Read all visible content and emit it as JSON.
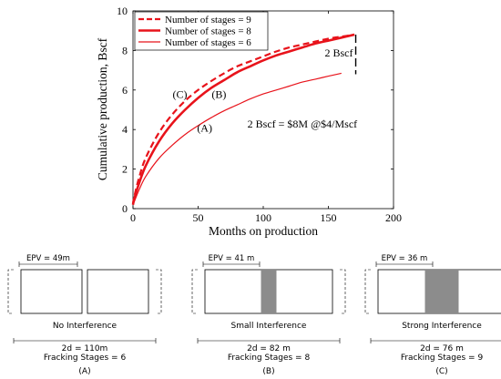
{
  "chart_data": {
    "type": "line",
    "xlabel": "Months on production",
    "ylabel": "Cumulative production, Bscf",
    "xlim": [
      0,
      200
    ],
    "ylim": [
      0,
      10
    ],
    "x_ticks": [
      "0",
      "50",
      "100",
      "150",
      "200"
    ],
    "y_ticks": [
      "0",
      "2",
      "4",
      "6",
      "8",
      "10"
    ],
    "grid": false,
    "legend_position": "top-left",
    "series": [
      {
        "name": "Number of stages = 9",
        "style": "dashed",
        "color": "#e8131b",
        "x": [
          1,
          5,
          10,
          20,
          30,
          40,
          50,
          60,
          70,
          80,
          90,
          100,
          110,
          120,
          130,
          140,
          150,
          160,
          170
        ],
        "y": [
          0.6,
          1.65,
          2.6,
          3.85,
          4.75,
          5.45,
          6.0,
          6.45,
          6.85,
          7.2,
          7.45,
          7.7,
          7.95,
          8.15,
          8.3,
          8.45,
          8.6,
          8.7,
          8.8
        ]
      },
      {
        "name": "Number of stages = 8",
        "style": "solid-thick",
        "color": "#e8131b",
        "x": [
          1,
          5,
          10,
          20,
          30,
          40,
          50,
          60,
          70,
          80,
          90,
          100,
          110,
          120,
          130,
          140,
          150,
          160,
          170
        ],
        "y": [
          0.5,
          1.35,
          2.2,
          3.4,
          4.3,
          5.0,
          5.6,
          6.1,
          6.5,
          6.9,
          7.2,
          7.5,
          7.75,
          7.95,
          8.15,
          8.35,
          8.5,
          8.65,
          8.8
        ]
      },
      {
        "name": "Number of stages = 6",
        "style": "solid-thin",
        "color": "#e8131b",
        "x": [
          1,
          5,
          10,
          20,
          30,
          40,
          50,
          60,
          70,
          80,
          90,
          100,
          110,
          120,
          130,
          140,
          150,
          160
        ],
        "y": [
          0.35,
          1.0,
          1.65,
          2.55,
          3.2,
          3.75,
          4.2,
          4.6,
          4.95,
          5.25,
          5.55,
          5.8,
          6.0,
          6.2,
          6.4,
          6.55,
          6.7,
          6.85
        ]
      }
    ],
    "annotations": {
      "curve_labels": [
        {
          "text": "(A)",
          "x": 55,
          "y": 3.9
        },
        {
          "text": "(B)",
          "x": 66,
          "y": 5.6
        },
        {
          "text": "(C)",
          "x": 36,
          "y": 5.6
        }
      ],
      "price_note": {
        "text": "2 Bscf = $8M @$4/Mscf",
        "x": 130,
        "y": 4.1
      },
      "bracket_label": {
        "text": "2 Bscf",
        "x": 158,
        "y": 7.7
      },
      "bracket": {
        "x": 171,
        "y_from": 6.8,
        "y_to": 8.8
      }
    }
  },
  "schematics": [
    {
      "epv_label": "EPV = 49m",
      "interference_label": "No Interference",
      "spacing_label": "2d = 110m",
      "stages_label": "Fracking Stages = 6",
      "case_label": "(A)",
      "interference_level": 0
    },
    {
      "epv_label": "EPV = 41 m",
      "interference_label": "Small Interference",
      "spacing_label": "2d = 82 m",
      "stages_label": "Fracking Stages = 8",
      "case_label": "(B)",
      "interference_level": 1
    },
    {
      "epv_label": "EPV = 36 m",
      "interference_label": "Strong Interference",
      "spacing_label": "2d = 76 m",
      "stages_label": "Fracking Stages = 9",
      "case_label": "(C)",
      "interference_level": 2
    }
  ],
  "colors": {
    "curve": "#e8131b",
    "axis": "#000000",
    "overlap": "#8c8c8c",
    "frame": "#000000"
  }
}
